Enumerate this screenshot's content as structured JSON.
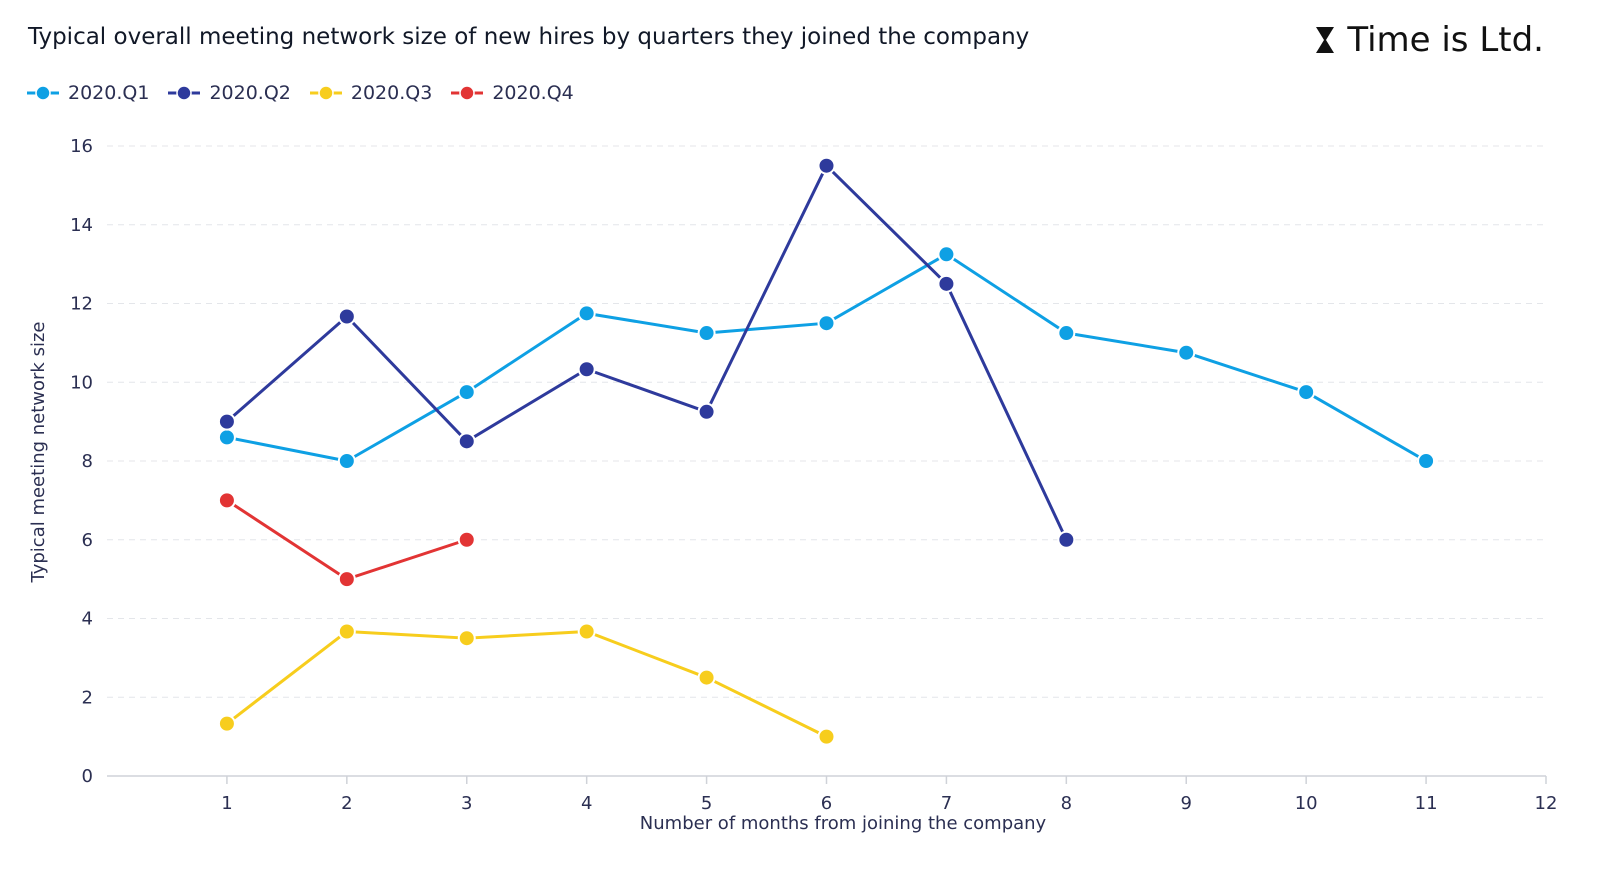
{
  "header": {
    "title": "Typical overall meeting network size of new hires by quarters they joined the company",
    "logo_text": "Time is Ltd."
  },
  "chart_data": {
    "type": "line",
    "title": "Typical overall meeting network size of new hires by quarters they joined the company",
    "xlabel": "Number of months from joining the company",
    "ylabel": "Typical meeting network size",
    "xlim": [
      0,
      12
    ],
    "ylim": [
      0,
      16
    ],
    "x_ticks": [
      1,
      2,
      3,
      4,
      5,
      6,
      7,
      8,
      9,
      10,
      11,
      12
    ],
    "y_ticks": [
      0,
      2,
      4,
      6,
      8,
      10,
      12,
      14,
      16
    ],
    "grid": "horizontal-dashed",
    "legend_position": "top-left",
    "series": [
      {
        "name": "2020.Q1",
        "color": "#0ea0e4",
        "x": [
          1,
          2,
          3,
          4,
          5,
          6,
          7,
          8,
          9,
          10,
          11
        ],
        "y": [
          8.6,
          8.0,
          9.75,
          11.75,
          11.25,
          11.5,
          13.25,
          11.25,
          10.75,
          9.75,
          8.0
        ]
      },
      {
        "name": "2020.Q2",
        "color": "#2e3a9c",
        "x": [
          1,
          2,
          3,
          4,
          5,
          6,
          7,
          8
        ],
        "y": [
          9.0,
          11.67,
          8.5,
          10.33,
          9.25,
          15.5,
          12.5,
          6.0
        ]
      },
      {
        "name": "2020.Q3",
        "color": "#f7cd1d",
        "x": [
          1,
          2,
          3,
          4,
          5,
          6
        ],
        "y": [
          1.33,
          3.67,
          3.5,
          3.67,
          2.5,
          1.0
        ]
      },
      {
        "name": "2020.Q4",
        "color": "#e23434",
        "x": [
          1,
          2,
          3
        ],
        "y": [
          7.0,
          5.0,
          6.0
        ]
      }
    ]
  }
}
